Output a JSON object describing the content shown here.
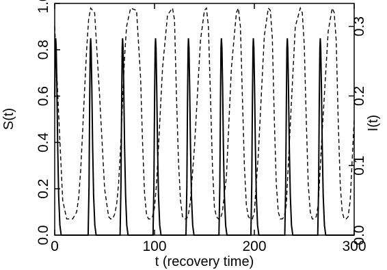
{
  "chart_data": {
    "type": "line",
    "title": "",
    "xlabel": "t (recovery time)",
    "ylabel_left": "S(t)",
    "ylabel_right": "I(t)",
    "xlim": [
      0,
      300
    ],
    "ylim_left": [
      0,
      1
    ],
    "ylim_right": [
      0,
      0.333
    ],
    "grid": false,
    "legend": "none",
    "x_ticks": [
      0,
      100,
      200,
      300
    ],
    "x_tick_labels": [
      "0",
      "100",
      "200",
      "300"
    ],
    "y_left_ticks": [
      0,
      0.2,
      0.4,
      0.6,
      0.8,
      1.0
    ],
    "y_left_tick_labels": [
      "0.0",
      "0.2",
      "0.4",
      "0.6",
      "0.8",
      "1.0"
    ],
    "y_right_ticks": [
      0,
      0.1,
      0.2,
      0.3
    ],
    "y_right_tick_labels": [
      "0.0",
      "0.1",
      "0.2",
      "0.3"
    ],
    "series": [
      {
        "axis": "left",
        "style": "dashed",
        "x": [
          0,
          4,
          8,
          12,
          18,
          22,
          24,
          26,
          28,
          30,
          32,
          34,
          36,
          40,
          45,
          50,
          54,
          56,
          58,
          60,
          62,
          64,
          66,
          68,
          70,
          72,
          76,
          82,
          86,
          88,
          90,
          92,
          94,
          96,
          98,
          100,
          102,
          104,
          108,
          113,
          118,
          120,
          122,
          124,
          126,
          128,
          130,
          132,
          134,
          136,
          140,
          146,
          150,
          152,
          154,
          156,
          158,
          160,
          162,
          164,
          166,
          168,
          172,
          177,
          182,
          184,
          186,
          188,
          190,
          192,
          194,
          196,
          198,
          200,
          204,
          210,
          214,
          216,
          218,
          220,
          222,
          224,
          226,
          228,
          230,
          232,
          236,
          241,
          246,
          248,
          250,
          252,
          254,
          256,
          258,
          260,
          262,
          264,
          268,
          274,
          278,
          280,
          282,
          284,
          286,
          288,
          290,
          292,
          294,
          296,
          300
        ],
        "y": [
          0.9,
          0.52,
          0.15,
          0.07,
          0.07,
          0.1,
          0.16,
          0.28,
          0.45,
          0.63,
          0.8,
          0.93,
          0.98,
          0.96,
          0.6,
          0.2,
          0.08,
          0.07,
          0.07,
          0.09,
          0.13,
          0.22,
          0.38,
          0.58,
          0.77,
          0.9,
          0.98,
          0.97,
          0.68,
          0.4,
          0.18,
          0.09,
          0.07,
          0.07,
          0.08,
          0.12,
          0.22,
          0.38,
          0.72,
          0.95,
          0.98,
          0.93,
          0.6,
          0.32,
          0.15,
          0.08,
          0.07,
          0.07,
          0.09,
          0.15,
          0.38,
          0.84,
          0.97,
          0.98,
          0.9,
          0.6,
          0.3,
          0.12,
          0.08,
          0.07,
          0.07,
          0.1,
          0.25,
          0.72,
          0.96,
          0.98,
          0.9,
          0.6,
          0.3,
          0.13,
          0.08,
          0.07,
          0.07,
          0.1,
          0.35,
          0.86,
          0.98,
          0.97,
          0.85,
          0.5,
          0.22,
          0.1,
          0.07,
          0.07,
          0.08,
          0.13,
          0.48,
          0.9,
          0.98,
          0.96,
          0.82,
          0.5,
          0.22,
          0.1,
          0.07,
          0.07,
          0.08,
          0.13,
          0.45,
          0.88,
          0.98,
          0.96,
          0.84,
          0.5,
          0.22,
          0.1,
          0.07,
          0.07,
          0.08,
          0.15,
          0.5
        ]
      },
      {
        "axis": "right",
        "style": "solid",
        "peaks_x": [
          1,
          36,
          68,
          101,
          134,
          167,
          199,
          233,
          266
        ],
        "peak_value": 0.283,
        "baseline": 0.0
      }
    ]
  }
}
